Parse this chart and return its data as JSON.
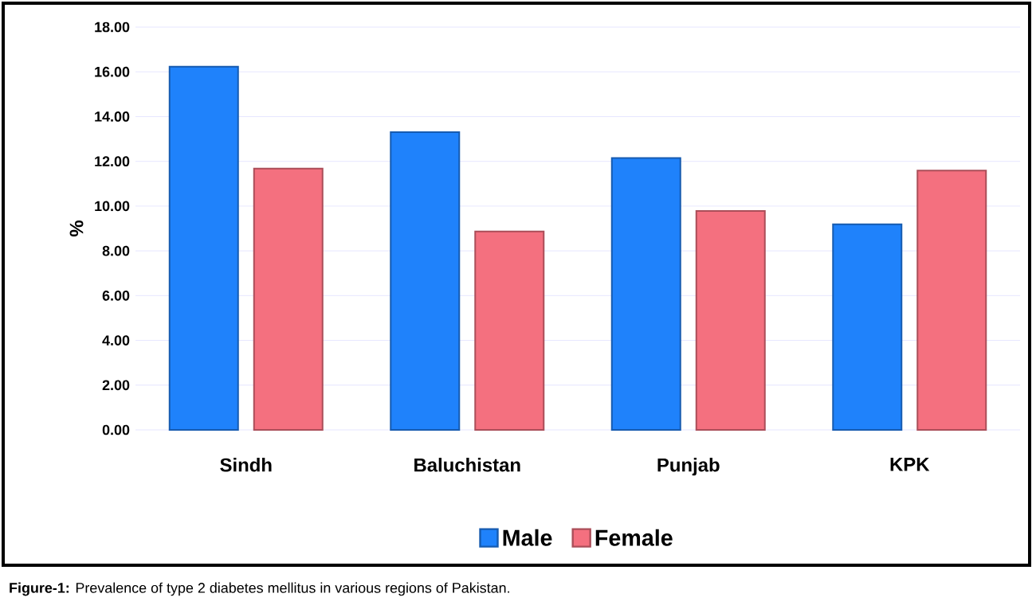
{
  "chart_data": {
    "type": "bar",
    "ylabel": "%",
    "categories": [
      "Sindh",
      "Baluchistan",
      "Punjab",
      "KPK"
    ],
    "series": [
      {
        "name": "Male",
        "color": "#1f82fb",
        "values": [
          16.23,
          13.3,
          12.15,
          9.19
        ]
      },
      {
        "name": "Female",
        "color": "#f4707f",
        "values": [
          11.68,
          8.87,
          9.78,
          11.59
        ]
      }
    ],
    "ylim": [
      0,
      18
    ],
    "yticks": [
      {
        "value": 0,
        "label": "0.00"
      },
      {
        "value": 2,
        "label": "2.00"
      },
      {
        "value": 4,
        "label": "4.00"
      },
      {
        "value": 6,
        "label": "6.00"
      },
      {
        "value": 8,
        "label": "8.00"
      },
      {
        "value": 10,
        "label": "10.00"
      },
      {
        "value": 12,
        "label": "12.00"
      },
      {
        "value": 14,
        "label": "14.00"
      },
      {
        "value": 16,
        "label": "16.00"
      },
      {
        "value": 18,
        "label": "18.00"
      }
    ],
    "grid": "y",
    "legend": "bottom",
    "annotations": [
      "**Figure-1:** Prevalence of type 2 diabetes mellitus in various regions of Pakistan."
    ]
  }
}
